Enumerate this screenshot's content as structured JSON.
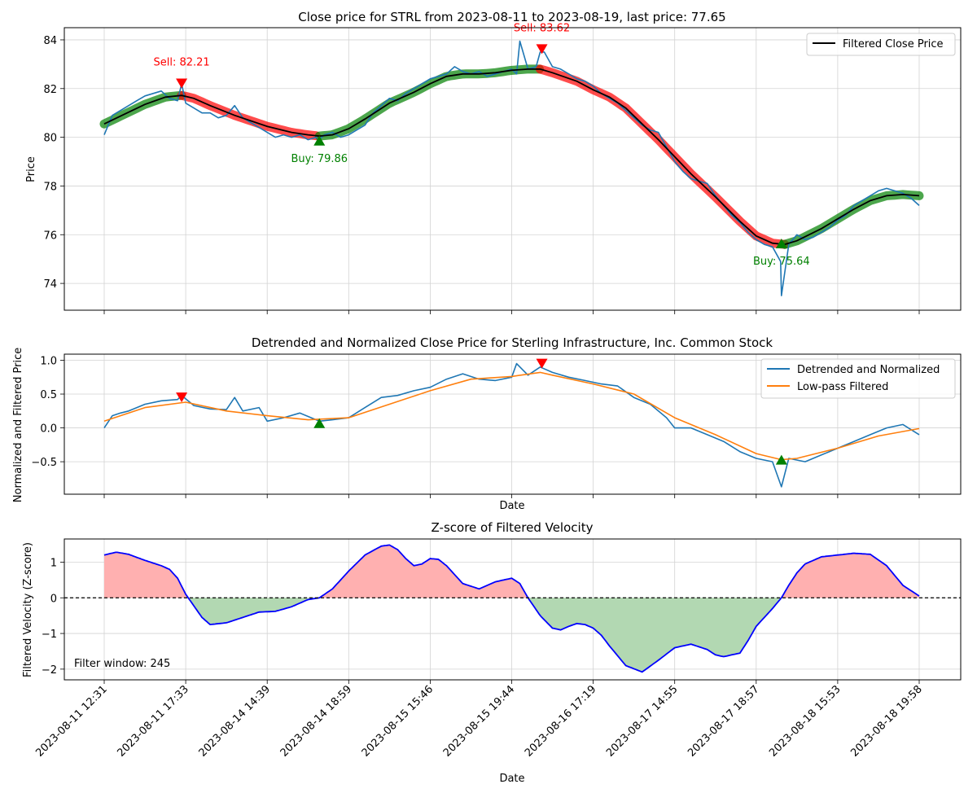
{
  "chart_data": [
    {
      "type": "line",
      "title": "Close price for STRL from 2023-08-11 to 2023-08-19, last price: 77.65",
      "xlabel": "",
      "ylabel": "Price",
      "ylim": [
        72.9,
        84.5
      ],
      "yticks": [
        74,
        76,
        78,
        80,
        82,
        84
      ],
      "grid": true,
      "legend": {
        "placement": "top-right",
        "entries": [
          "Filtered Close Price"
        ]
      },
      "series": [
        {
          "name": "",
          "color": "#1f77b4",
          "x": [
            0,
            0.1,
            0.2,
            0.3,
            0.4,
            0.5,
            0.6,
            0.7,
            0.8,
            0.9,
            0.95,
            1.0,
            1.1,
            1.2,
            1.3,
            1.4,
            1.5,
            1.6,
            1.7,
            1.8,
            1.9,
            2.0,
            2.1,
            2.2,
            2.3,
            2.4,
            2.5,
            2.6,
            2.64,
            2.7,
            2.8,
            2.9,
            3.0,
            3.1,
            3.2,
            3.3,
            3.4,
            3.5,
            3.6,
            3.7,
            3.8,
            3.9,
            4.0,
            4.1,
            4.2,
            4.3,
            4.4,
            4.5,
            4.6,
            4.7,
            4.8,
            4.9,
            5.0,
            5.06,
            5.1,
            5.2,
            5.3,
            5.35,
            5.4,
            5.5,
            5.6,
            5.7,
            5.8,
            5.9,
            6.0,
            6.1,
            6.2,
            6.3,
            6.4,
            6.5,
            6.6,
            6.7,
            6.8,
            6.9,
            7.0,
            7.1,
            7.2,
            7.3,
            7.4,
            7.5,
            7.6,
            7.7,
            7.8,
            7.9,
            8.0,
            8.1,
            8.2,
            8.3,
            8.31,
            8.4,
            8.5,
            8.6,
            8.7,
            8.8,
            8.9,
            9.0,
            9.1,
            9.2,
            9.3,
            9.4,
            9.5,
            9.6,
            9.7,
            9.8,
            9.9,
            10.0
          ],
          "values": [
            80.1,
            80.9,
            81.1,
            81.3,
            81.5,
            81.7,
            81.8,
            81.9,
            81.6,
            81.5,
            82.2,
            81.4,
            81.2,
            81.0,
            81.0,
            80.8,
            80.9,
            81.3,
            80.8,
            80.6,
            80.4,
            80.2,
            80.0,
            80.1,
            80.0,
            80.1,
            79.9,
            80.0,
            79.9,
            80.1,
            80.2,
            80.0,
            80.1,
            80.3,
            80.5,
            81.0,
            81.3,
            81.6,
            81.5,
            81.8,
            82.0,
            82.2,
            82.4,
            82.5,
            82.6,
            82.9,
            82.7,
            82.6,
            82.7,
            82.5,
            82.6,
            82.7,
            82.8,
            82.6,
            83.95,
            82.8,
            82.9,
            83.5,
            83.5,
            82.9,
            82.8,
            82.6,
            82.4,
            82.3,
            82.1,
            81.8,
            81.6,
            81.4,
            81.1,
            80.8,
            80.5,
            80.3,
            80.2,
            79.6,
            79.0,
            78.6,
            78.3,
            78.2,
            78.1,
            77.6,
            77.2,
            76.8,
            76.5,
            76.1,
            75.8,
            75.6,
            75.5,
            74.9,
            73.5,
            75.6,
            76.0,
            75.8,
            75.9,
            76.1,
            76.3,
            76.6,
            76.8,
            77.2,
            77.4,
            77.6,
            77.8,
            77.9,
            77.8,
            77.7,
            77.5,
            77.2
          ]
        },
        {
          "name": "Filtered Close Price",
          "color": "#000000",
          "x": [
            0,
            0.25,
            0.5,
            0.75,
            0.95,
            1.1,
            1.3,
            1.6,
            2.0,
            2.3,
            2.5,
            2.64,
            2.8,
            3.0,
            3.2,
            3.5,
            3.8,
            4.0,
            4.2,
            4.4,
            4.6,
            4.8,
            5.0,
            5.2,
            5.35,
            5.5,
            5.8,
            6.0,
            6.2,
            6.4,
            6.6,
            6.8,
            7.0,
            7.2,
            7.5,
            7.8,
            8.0,
            8.2,
            8.35,
            8.5,
            8.8,
            9.0,
            9.2,
            9.4,
            9.6,
            9.8,
            10.0
          ],
          "values": [
            80.55,
            80.95,
            81.35,
            81.65,
            81.72,
            81.6,
            81.3,
            80.9,
            80.45,
            80.2,
            80.1,
            80.05,
            80.1,
            80.35,
            80.75,
            81.4,
            81.85,
            82.2,
            82.5,
            82.6,
            82.6,
            82.65,
            82.75,
            82.8,
            82.8,
            82.65,
            82.3,
            81.95,
            81.65,
            81.2,
            80.55,
            79.9,
            79.2,
            78.5,
            77.55,
            76.55,
            75.95,
            75.65,
            75.6,
            75.75,
            76.25,
            76.65,
            77.05,
            77.4,
            77.6,
            77.65,
            77.6
          ]
        }
      ],
      "trend_segments": [
        {
          "from": 0,
          "to": 0.95,
          "trend": "up",
          "color": "#008000"
        },
        {
          "from": 0.95,
          "to": 2.64,
          "trend": "down",
          "color": "#ff0000"
        },
        {
          "from": 2.64,
          "to": 5.35,
          "trend": "up",
          "color": "#008000"
        },
        {
          "from": 5.35,
          "to": 8.35,
          "trend": "down",
          "color": "#ff0000"
        },
        {
          "from": 8.35,
          "to": 10.0,
          "trend": "up",
          "color": "#008000"
        }
      ],
      "markers": [
        {
          "type": "sell",
          "x": 0.95,
          "y": 82.21,
          "label": "Sell: 82.21",
          "color": "#ff0000"
        },
        {
          "type": "buy",
          "x": 2.64,
          "y": 79.86,
          "label": "Buy: 79.86",
          "color": "#008000"
        },
        {
          "type": "sell",
          "x": 5.37,
          "y": 83.62,
          "label": "Sell: 83.62",
          "color": "#ff0000"
        },
        {
          "type": "buy",
          "x": 8.31,
          "y": 75.64,
          "label": "Buy: 75.64",
          "color": "#008000"
        }
      ]
    },
    {
      "type": "line",
      "title": "Detrended and Normalized Close Price for Sterling Infrastructure, Inc. Common Stock",
      "xlabel": "Date",
      "ylabel": "Normalized and Filtered Price",
      "ylim": [
        -0.98,
        1.09
      ],
      "yticks": [
        -0.5,
        0.0,
        0.5,
        1.0
      ],
      "ytick_labels": [
        "−0.5",
        "0.0",
        "0.5",
        "1.0"
      ],
      "grid": true,
      "legend": {
        "placement": "top-right",
        "entries": [
          "Detrended and Normalized",
          "Low-pass Filtered"
        ]
      },
      "series": [
        {
          "name": "Detrended and Normalized",
          "color": "#1f77b4",
          "x": [
            0,
            0.1,
            0.2,
            0.3,
            0.5,
            0.7,
            0.9,
            0.95,
            1.1,
            1.3,
            1.5,
            1.6,
            1.7,
            1.9,
            2.0,
            2.2,
            2.4,
            2.64,
            2.8,
            3.0,
            3.2,
            3.4,
            3.6,
            3.8,
            4.0,
            4.2,
            4.4,
            4.6,
            4.8,
            5.0,
            5.06,
            5.2,
            5.35,
            5.5,
            5.7,
            5.9,
            6.1,
            6.3,
            6.5,
            6.7,
            6.9,
            7.0,
            7.2,
            7.4,
            7.6,
            7.8,
            8.0,
            8.2,
            8.31,
            8.4,
            8.6,
            8.8,
            9.0,
            9.2,
            9.4,
            9.6,
            9.8,
            10.0
          ],
          "values": [
            0.0,
            0.18,
            0.22,
            0.25,
            0.35,
            0.4,
            0.42,
            0.48,
            0.33,
            0.28,
            0.27,
            0.45,
            0.25,
            0.3,
            0.1,
            0.15,
            0.22,
            0.1,
            0.12,
            0.15,
            0.3,
            0.45,
            0.48,
            0.55,
            0.6,
            0.72,
            0.8,
            0.72,
            0.7,
            0.75,
            0.95,
            0.78,
            0.9,
            0.82,
            0.75,
            0.7,
            0.65,
            0.62,
            0.45,
            0.35,
            0.15,
            0.0,
            0.0,
            -0.1,
            -0.2,
            -0.35,
            -0.45,
            -0.5,
            -0.87,
            -0.45,
            -0.5,
            -0.4,
            -0.3,
            -0.2,
            -0.1,
            0.0,
            0.05,
            -0.1
          ]
        },
        {
          "name": "Low-pass Filtered",
          "color": "#ff7f0e",
          "x": [
            0,
            0.5,
            1.0,
            1.5,
            2.0,
            2.5,
            3.0,
            3.5,
            4.0,
            4.5,
            5.0,
            5.35,
            5.5,
            6.0,
            6.5,
            7.0,
            7.5,
            8.0,
            8.31,
            8.5,
            9.0,
            9.5,
            10.0
          ],
          "values": [
            0.1,
            0.3,
            0.38,
            0.25,
            0.18,
            0.12,
            0.15,
            0.35,
            0.55,
            0.72,
            0.76,
            0.82,
            0.78,
            0.65,
            0.5,
            0.15,
            -0.1,
            -0.38,
            -0.47,
            -0.45,
            -0.3,
            -0.12,
            -0.01
          ]
        }
      ],
      "markers": [
        {
          "type": "sell",
          "x": 0.95,
          "y": 0.45,
          "color": "#ff0000"
        },
        {
          "type": "buy",
          "x": 2.64,
          "y": 0.07,
          "color": "#008000"
        },
        {
          "type": "sell",
          "x": 5.37,
          "y": 0.95,
          "color": "#ff0000"
        },
        {
          "type": "buy",
          "x": 8.31,
          "y": -0.47,
          "color": "#008000"
        }
      ]
    },
    {
      "type": "area",
      "title": "Z-score of Filtered Velocity",
      "xlabel": "Date",
      "ylabel": "Filtered Velocity (Z-score)",
      "ylim": [
        -2.3,
        1.65
      ],
      "yticks": [
        -2,
        -1,
        0,
        1
      ],
      "ytick_labels": [
        "−2",
        "−1",
        "0",
        "1"
      ],
      "grid": true,
      "annotation": "Filter window: 245",
      "fill_colors": {
        "positive": "#ffb0b0",
        "negative": "#b2d8b2"
      },
      "series": [
        {
          "name": "",
          "color": "#0000ff",
          "x": [
            0,
            0.15,
            0.3,
            0.5,
            0.7,
            0.8,
            0.9,
            1.0,
            1.2,
            1.3,
            1.5,
            1.7,
            1.9,
            2.1,
            2.3,
            2.5,
            2.64,
            2.8,
            3.0,
            3.2,
            3.4,
            3.5,
            3.6,
            3.7,
            3.8,
            3.9,
            4.0,
            4.1,
            4.2,
            4.4,
            4.6,
            4.8,
            5.0,
            5.1,
            5.2,
            5.35,
            5.5,
            5.6,
            5.7,
            5.8,
            5.9,
            6.0,
            6.1,
            6.2,
            6.4,
            6.6,
            6.8,
            7.0,
            7.2,
            7.4,
            7.5,
            7.6,
            7.8,
            7.9,
            8.0,
            8.2,
            8.31,
            8.4,
            8.5,
            8.6,
            8.8,
            9.0,
            9.2,
            9.4,
            9.6,
            9.8,
            10.0
          ],
          "values": [
            1.2,
            1.28,
            1.22,
            1.05,
            0.9,
            0.8,
            0.55,
            0.1,
            -0.55,
            -0.75,
            -0.7,
            -0.55,
            -0.4,
            -0.38,
            -0.25,
            -0.05,
            0.0,
            0.25,
            0.75,
            1.2,
            1.45,
            1.48,
            1.35,
            1.1,
            0.9,
            0.95,
            1.1,
            1.08,
            0.9,
            0.4,
            0.25,
            0.45,
            0.55,
            0.4,
            0.0,
            -0.5,
            -0.85,
            -0.9,
            -0.8,
            -0.72,
            -0.75,
            -0.85,
            -1.05,
            -1.35,
            -1.9,
            -2.08,
            -1.75,
            -1.4,
            -1.3,
            -1.45,
            -1.6,
            -1.65,
            -1.55,
            -1.2,
            -0.8,
            -0.3,
            0.0,
            0.35,
            0.7,
            0.95,
            1.15,
            1.2,
            1.25,
            1.22,
            0.9,
            0.35,
            0.05
          ]
        }
      ]
    }
  ],
  "x_axis": {
    "label": "Date",
    "tick_labels": [
      "2023-08-11 12:31",
      "2023-08-11 17:33",
      "2023-08-14 14:39",
      "2023-08-14 18:59",
      "2023-08-15 15:46",
      "2023-08-15 19:44",
      "2023-08-16 17:19",
      "2023-08-17 14:55",
      "2023-08-17 18:57",
      "2023-08-18 15:53",
      "2023-08-18 19:58"
    ]
  }
}
